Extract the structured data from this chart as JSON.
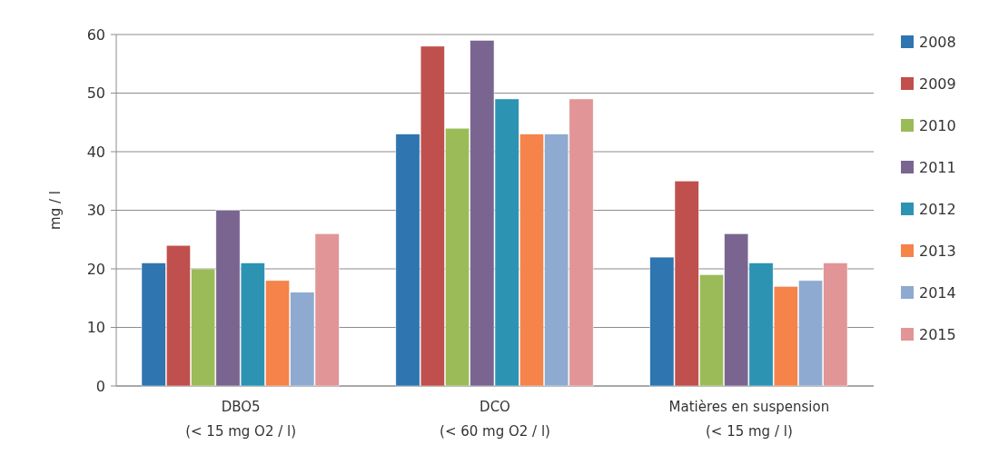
{
  "chart_data": {
    "type": "bar",
    "ylabel": "mg / l",
    "categories": [
      "DBO5\n(< 15 mg O2 / l)",
      "DCO\n(< 60 mg O2 / l)",
      "Matières en suspension\n(< 15 mg / l)"
    ],
    "series": [
      {
        "name": "2008",
        "color": "#2f75b0",
        "values": [
          21,
          43,
          22
        ]
      },
      {
        "name": "2009",
        "color": "#c0504d",
        "values": [
          24,
          58,
          35
        ]
      },
      {
        "name": "2010",
        "color": "#9bbb59",
        "values": [
          20,
          44,
          19
        ]
      },
      {
        "name": "2011",
        "color": "#7a6591",
        "values": [
          30,
          59,
          26
        ]
      },
      {
        "name": "2012",
        "color": "#2d93b3",
        "values": [
          21,
          49,
          21
        ]
      },
      {
        "name": "2013",
        "color": "#f5834a",
        "values": [
          18,
          43,
          17
        ]
      },
      {
        "name": "2014",
        "color": "#8eaad0",
        "values": [
          16,
          43,
          18
        ]
      },
      {
        "name": "2015",
        "color": "#e29596",
        "values": [
          26,
          49,
          21
        ]
      }
    ],
    "ylim": [
      0,
      60
    ],
    "yticks": [
      0,
      10,
      20,
      30,
      40,
      50,
      60
    ],
    "grid": "y",
    "legend": "right"
  }
}
